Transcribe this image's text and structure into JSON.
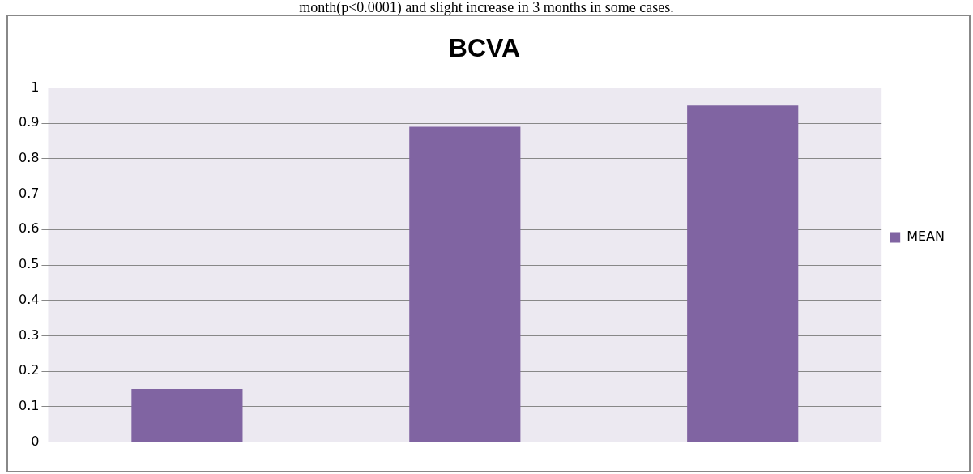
{
  "chart_data": {
    "type": "bar",
    "title": "BCVA",
    "annotations": [
      "month(p<0.0001) and slight increase in 3 months in some cases."
    ],
    "categories": [
      null,
      null,
      null
    ],
    "series": [
      {
        "name": "MEAN",
        "color": "#8064a2",
        "values": [
          0.15,
          0.89,
          0.95
        ]
      }
    ],
    "ylim": [
      0,
      1
    ],
    "yticks": [
      0,
      0.1,
      0.2,
      0.3,
      0.4,
      0.5,
      0.6,
      0.7,
      0.8,
      0.9,
      1
    ],
    "grid": "y",
    "legend": "right"
  }
}
